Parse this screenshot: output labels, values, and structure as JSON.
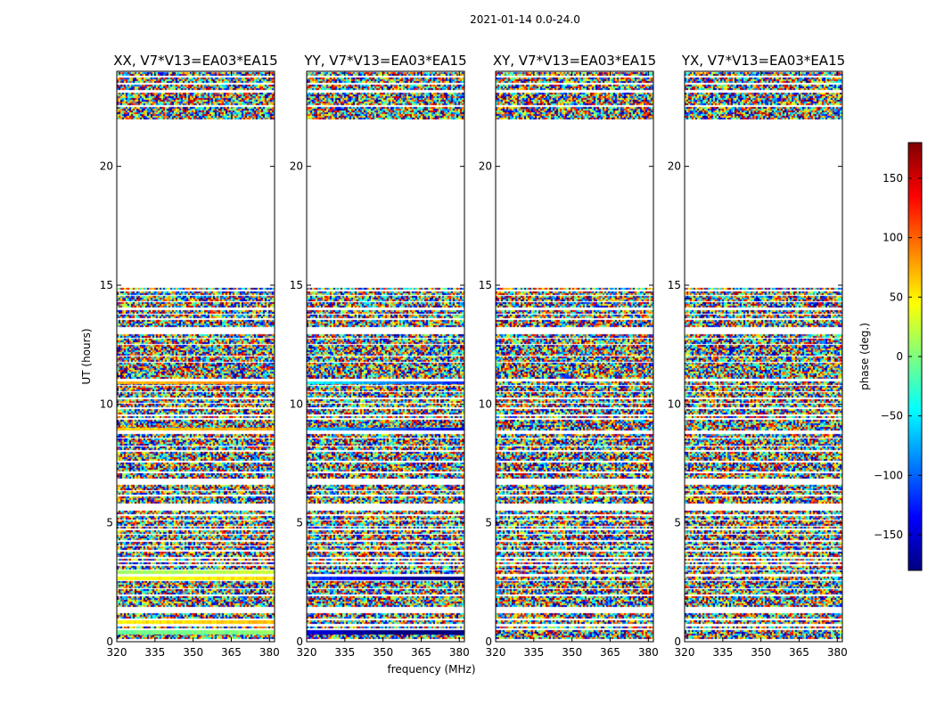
{
  "chart_data": {
    "type": "heatmap",
    "suptitle": "2021-01-14 0.0-24.0",
    "xlabel": "frequency (MHz)",
    "ylabel": "UT (hours)",
    "xlim": [
      320,
      382
    ],
    "ylim": [
      0,
      24
    ],
    "xticks": [
      320,
      335,
      350,
      365,
      380
    ],
    "yticks": [
      0,
      5,
      10,
      15,
      20
    ],
    "colorbar": {
      "label": "phase (deg.)",
      "range": [
        -180,
        180
      ],
      "ticks": [
        150,
        100,
        50,
        0,
        -50,
        -100,
        -150
      ],
      "tick_labels": [
        "150",
        "100",
        "50",
        "0",
        "−50",
        "−100",
        "−150"
      ],
      "colormap": "jet",
      "colors": [
        "#00007f",
        "#0000ff",
        "#007fff",
        "#00ffff",
        "#7fff7f",
        "#ffff00",
        "#ff7f00",
        "#ff0000",
        "#7f0000"
      ]
    },
    "data_blocks_ut": [
      [
        0.1,
        0.25
      ],
      [
        0.3,
        0.5
      ],
      [
        0.55,
        0.65
      ],
      [
        0.75,
        0.9
      ],
      [
        1.0,
        1.2
      ],
      [
        1.5,
        1.9
      ],
      [
        2.0,
        2.2
      ],
      [
        2.3,
        2.55
      ],
      [
        2.6,
        2.75
      ],
      [
        2.85,
        3.0
      ],
      [
        3.05,
        3.2
      ],
      [
        3.25,
        3.35
      ],
      [
        3.4,
        3.5
      ],
      [
        3.6,
        3.8
      ],
      [
        3.9,
        4.0
      ],
      [
        4.05,
        4.2
      ],
      [
        4.3,
        4.5
      ],
      [
        4.55,
        4.7
      ],
      [
        4.75,
        4.85
      ],
      [
        4.9,
        5.1
      ],
      [
        5.15,
        5.3
      ],
      [
        5.35,
        5.5
      ],
      [
        5.8,
        5.95
      ],
      [
        6.0,
        6.1
      ],
      [
        6.2,
        6.35
      ],
      [
        6.4,
        6.6
      ],
      [
        6.85,
        7.1
      ],
      [
        7.2,
        7.55
      ],
      [
        7.6,
        8.0
      ],
      [
        8.05,
        8.2
      ],
      [
        8.25,
        8.55
      ],
      [
        8.6,
        8.75
      ],
      [
        8.9,
        9.1
      ],
      [
        9.15,
        9.35
      ],
      [
        9.4,
        9.5
      ],
      [
        9.55,
        9.8
      ],
      [
        9.85,
        10.0
      ],
      [
        10.05,
        10.2
      ],
      [
        10.3,
        10.5
      ],
      [
        10.55,
        10.75
      ],
      [
        10.85,
        10.95
      ],
      [
        11.05,
        11.2
      ],
      [
        11.25,
        11.5
      ],
      [
        11.55,
        11.75
      ],
      [
        11.8,
        12.0
      ],
      [
        12.05,
        12.25
      ],
      [
        12.3,
        12.5
      ],
      [
        12.55,
        12.75
      ],
      [
        12.8,
        12.95
      ],
      [
        13.25,
        13.55
      ],
      [
        13.6,
        13.75
      ],
      [
        13.8,
        13.95
      ],
      [
        14.05,
        14.3
      ],
      [
        14.35,
        14.55
      ],
      [
        14.6,
        14.75
      ],
      [
        14.8,
        14.9
      ],
      [
        22.0,
        22.5
      ],
      [
        22.6,
        23.1
      ],
      [
        23.2,
        23.45
      ],
      [
        23.5,
        23.75
      ],
      [
        23.8,
        23.95
      ]
    ],
    "panels": [
      {
        "title": "XX, V7*V13=EA03*EA15",
        "coherent_bands": [
          {
            "ut": [
              10.85,
              10.95
            ],
            "phase": 70
          },
          {
            "ut": [
              8.9,
              9.0
            ],
            "phase": 60
          },
          {
            "ut": [
              2.6,
              2.75
            ],
            "phase": 40
          },
          {
            "ut": [
              2.85,
              3.0
            ],
            "phase": 10
          },
          {
            "ut": [
              0.75,
              0.9
            ],
            "phase": 50
          },
          {
            "ut": [
              0.3,
              0.5
            ],
            "phase": -10
          }
        ]
      },
      {
        "title": "YY, V7*V13=EA03*EA15",
        "coherent_bands": [
          {
            "ut": [
              10.85,
              10.95
            ],
            "phase": -40
          },
          {
            "ut": [
              8.9,
              9.0
            ],
            "phase": -60
          },
          {
            "ut": [
              2.6,
              2.75
            ],
            "phase": -110
          },
          {
            "ut": [
              0.3,
              0.5
            ],
            "phase": -140
          }
        ]
      },
      {
        "title": "XY, V7*V13=EA03*EA15",
        "coherent_bands": []
      },
      {
        "title": "YX, V7*V13=EA03*EA15",
        "coherent_bands": []
      }
    ]
  }
}
